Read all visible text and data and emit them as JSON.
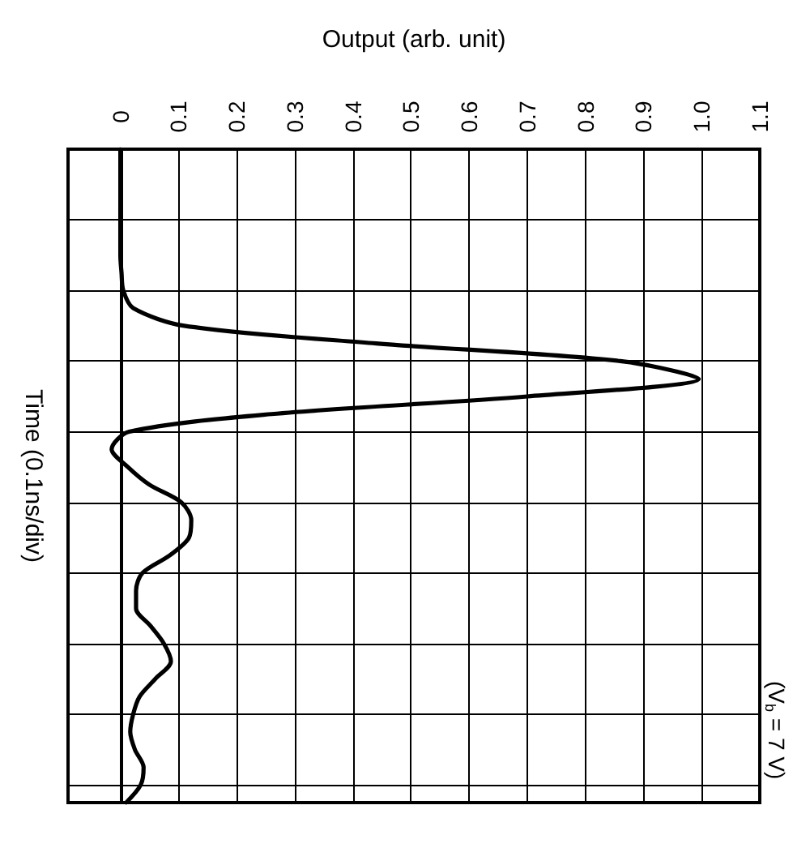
{
  "chart_data": {
    "type": "line",
    "orientation": "horizontal",
    "xlabel": "Output (arb. unit)",
    "ylabel": "Time (0.1ns/div)",
    "categories": [
      null,
      null,
      null,
      null,
      null,
      null,
      null,
      null,
      null,
      null,
      null,
      null,
      null,
      null,
      null,
      null,
      null,
      null,
      null,
      null,
      null,
      null,
      null,
      null,
      null,
      null,
      null,
      null,
      null,
      null,
      null,
      null,
      null,
      null,
      null,
      null,
      null,
      null
    ],
    "series": [
      {
        "color": "#000000",
        "values": [
          0,
          0,
          0,
          0,
          0,
          0,
          0,
          0.002,
          0.005,
          0.022,
          0.11,
          0.44,
          0.86,
          0.995,
          0.7,
          0.26,
          0.015,
          -0.015,
          0.013,
          0.05,
          0.105,
          0.122,
          0.118,
          0.085,
          0.038,
          0.027,
          0.027,
          0.052,
          0.075,
          0.087,
          0.06,
          0.033,
          0.022,
          0.017,
          0.025,
          0.04,
          0.035,
          0.01
        ]
      }
    ],
    "xlim": [
      -0.09,
      1.1
    ],
    "xticks": [
      0,
      {
        "value": 0.1,
        "label": "0.1"
      },
      {
        "value": 0.2,
        "label": "0.2"
      },
      {
        "value": 0.3,
        "label": "0.3"
      },
      {
        "value": 0.4,
        "label": "0.4"
      },
      {
        "value": 0.5,
        "label": "0.5"
      },
      {
        "value": 0.6,
        "label": "0.6"
      },
      {
        "value": 0.7,
        "label": "0.7"
      },
      {
        "value": 0.8,
        "label": "0.8"
      },
      {
        "value": 0.9,
        "label": "0.9"
      },
      {
        "value": 1.0,
        "label": "1.0"
      },
      {
        "value": 1.1,
        "label": "1.1"
      }
    ],
    "annotations": [
      "(V$_{b}$ = 7 V)"
    ],
    "tick_labels": "x",
    "grid": true,
    "marker": "none",
    "line_style": "solid"
  }
}
